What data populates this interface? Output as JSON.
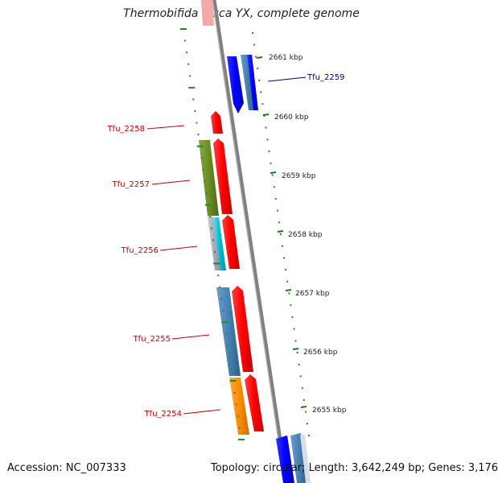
{
  "title": "Thermobifida fusca YX, complete genome",
  "footer": {
    "accession": "Accession: NC_007333",
    "summary": "Topology: circular; Length: 3,642,249 bp; Genes: 3,176"
  },
  "ticks": [
    "2661 kbp",
    "2660 kbp",
    "2659 kbp",
    "2658 kbp",
    "2657 kbp",
    "2656 kbp",
    "2655 kbp"
  ],
  "gene_labels": [
    {
      "name": "Tfu_2259",
      "color": "#00008b"
    },
    {
      "name": "Tfu_2258",
      "color": "#cc0000"
    },
    {
      "name": "Tfu_2257",
      "color": "#cc0000"
    },
    {
      "name": "Tfu_2256",
      "color": "#cc0000"
    },
    {
      "name": "Tfu_2255",
      "color": "#cc0000"
    },
    {
      "name": "Tfu_2254",
      "color": "#cc0000"
    }
  ],
  "colors": {
    "forward_cds": "#ff0000",
    "reverse_cds": "#0000ff",
    "steelblue_feature": "#4682b4",
    "olive_feature": "#6b8e23",
    "orange_feature": "#ff8c00",
    "cyan_feature": "#00bcd4",
    "gc_skew_dots": "#228b22",
    "backbone": "#808080"
  }
}
